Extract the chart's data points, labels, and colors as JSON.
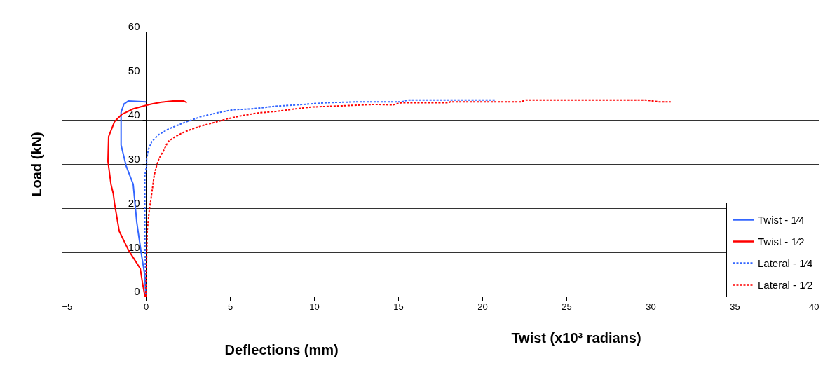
{
  "chart_data": {
    "type": "line",
    "xlabel": "Deflections (mm)",
    "ylabel": "Load (kN)",
    "annotations": [
      "Twist (x10³ radians)"
    ],
    "xlim": [
      -5,
      40
    ],
    "xticks": [
      -5,
      0,
      5,
      10,
      15,
      20,
      25,
      30,
      35,
      40
    ],
    "ylim": [
      0,
      60
    ],
    "yticks": [
      0,
      10,
      20,
      30,
      40,
      50,
      60
    ],
    "grid": "y",
    "legend": "bottom right",
    "series": [
      {
        "name": "Twist - 1⁄4",
        "color": "#3366ff",
        "line_style": "solid",
        "x": [
          0.0,
          -0.06,
          -0.26,
          -0.54,
          -0.75,
          -1.17,
          -1.47,
          -1.47,
          -1.3,
          -1.03,
          0.01
        ],
        "values": [
          0,
          4.8,
          9.5,
          16.9,
          25.4,
          29.6,
          34.3,
          41.7,
          43.6,
          44.3,
          44.1
        ]
      },
      {
        "name": "Twist - 1⁄2",
        "color": "#ff0000",
        "line_style": "solid",
        "x": [
          -0.05,
          -0.2,
          -0.33,
          -1.03,
          -1.58,
          -1.86,
          -1.93,
          -2.07,
          -2.25,
          -2.21,
          -1.86,
          -1.44,
          -0.75,
          0.01,
          0.36,
          0.92,
          1.61,
          2.24,
          2.44
        ],
        "values": [
          0,
          3.1,
          6.3,
          10.5,
          14.8,
          21.1,
          23.2,
          25.4,
          30.6,
          36.2,
          39.6,
          41.2,
          42.5,
          43.3,
          43.6,
          44.0,
          44.3,
          44.3,
          43.9
        ]
      },
      {
        "name": "Lateral - 1⁄4",
        "color": "#3366ff",
        "line_style": "dotted",
        "x": [
          0,
          -0.06,
          -0.06,
          0.05,
          0.05,
          0.15,
          0.36,
          0.78,
          1.33,
          2.3,
          3.26,
          4.25,
          5.22,
          6.33,
          7.72,
          9.39,
          10.78,
          12.72,
          15.2,
          15.6,
          20.8
        ],
        "values": [
          0,
          14.8,
          27.5,
          29.6,
          31.2,
          33.3,
          35.1,
          36.7,
          37.9,
          39.4,
          40.7,
          41.6,
          42.3,
          42.5,
          43.1,
          43.5,
          43.9,
          44.1,
          44.1,
          44.5,
          44.5
        ]
      },
      {
        "name": "Lateral - 1⁄2",
        "color": "#ff0000",
        "line_style": "dotted",
        "x": [
          0,
          0.08,
          0.22,
          0.29,
          0.5,
          0.64,
          0.78,
          1.05,
          1.33,
          1.75,
          2.3,
          3.28,
          4.25,
          4.8,
          5.78,
          6.75,
          7.72,
          8.7,
          9.8,
          11.75,
          13.55,
          14.7,
          15.2,
          18.0,
          18.1,
          22.3,
          22.6,
          29.7,
          30.5,
          31.2
        ],
        "values": [
          0,
          14.8,
          20.0,
          21.6,
          27.5,
          29.6,
          31.2,
          33.0,
          35.1,
          36.2,
          37.3,
          38.6,
          39.6,
          40.2,
          41.0,
          41.6,
          41.9,
          42.4,
          42.9,
          43.2,
          43.5,
          43.4,
          43.9,
          43.9,
          44.1,
          44.1,
          44.5,
          44.5,
          44.1,
          44.1
        ]
      }
    ]
  }
}
